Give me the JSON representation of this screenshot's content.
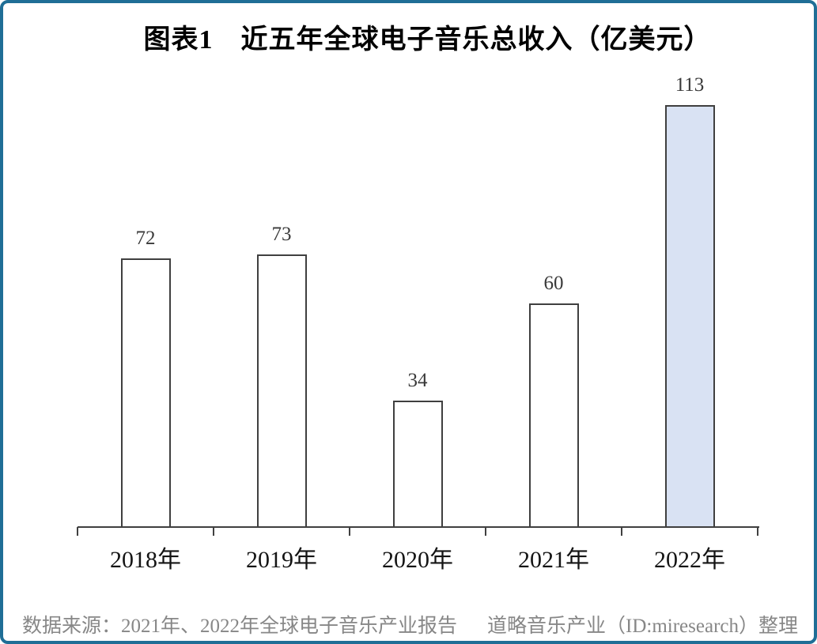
{
  "chart_data": {
    "type": "bar",
    "title": "图表1　近五年全球电子音乐总收入（亿美元）",
    "categories": [
      "2018年",
      "2019年",
      "2020年",
      "2021年",
      "2022年"
    ],
    "values": [
      72,
      73,
      34,
      60,
      113
    ],
    "xlabel": "",
    "ylabel": "",
    "ylim": [
      0,
      120
    ],
    "grid": false,
    "legend": "none",
    "value_labels_shown": true,
    "highlight_index": 4,
    "bar_fill_default": "#ffffff",
    "bar_fill_highlight": "#d9e2f3",
    "bar_border_color": "#3f3f3f",
    "axis_color": "#404040"
  },
  "footer": {
    "source": "数据来源：2021年、2022年全球电子音乐产业报告",
    "credit": "道略音乐产业（ID:miresearch）整理"
  },
  "colors": {
    "page_border": "#1f6e96",
    "footer_text": "#878787",
    "title_text": "#000000",
    "value_label_text": "#3a3a3a",
    "category_label_text": "#141414"
  }
}
